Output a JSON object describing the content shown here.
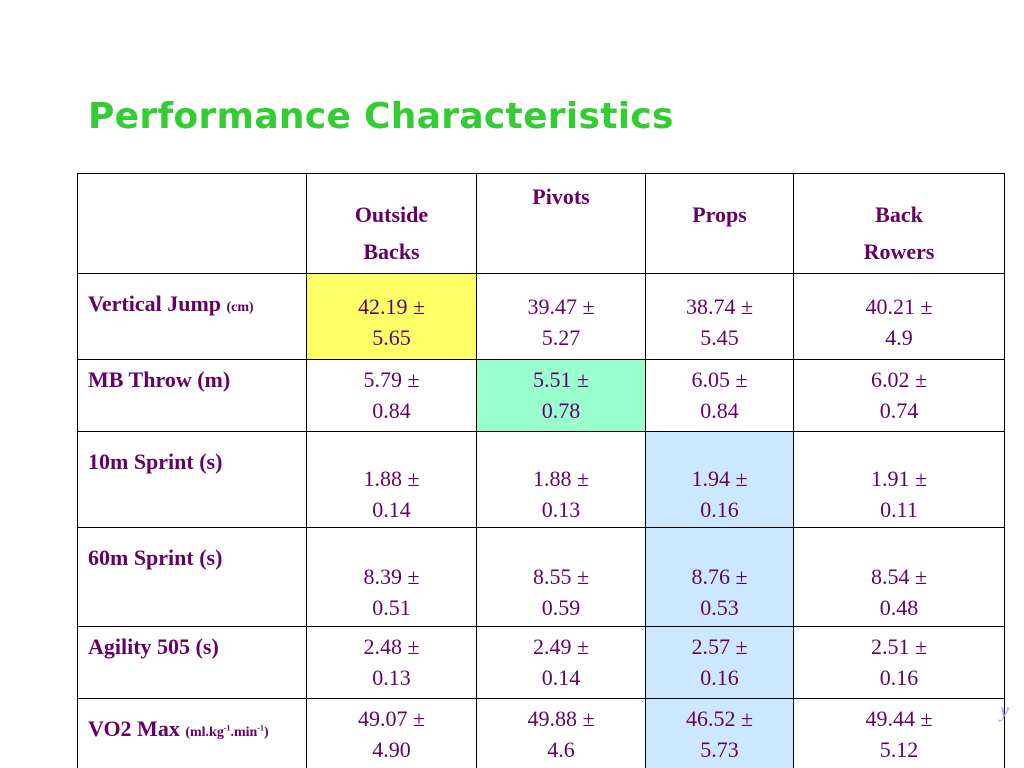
{
  "slide": {
    "title": "Performance Characteristics",
    "logo_fragment": "y"
  },
  "table": {
    "columns": [
      {
        "line1": "Outside",
        "line2": "Backs"
      },
      {
        "line1": "Pivots",
        "line2": ""
      },
      {
        "line1": "Props",
        "line2": ""
      },
      {
        "line1": "Back",
        "line2": "Rowers"
      }
    ],
    "rows": [
      {
        "label": "Vertical Jump",
        "unit": "(cm)",
        "cells": [
          {
            "mean": "42.19",
            "sd": "5.65",
            "highlight": "#ffff66"
          },
          {
            "mean": "39.47",
            "sd": "5.27"
          },
          {
            "mean": "38.74",
            "sd": "5.45"
          },
          {
            "mean": "40.21",
            "sd": "4.9"
          }
        ]
      },
      {
        "label": "MB Throw (m)",
        "cells": [
          {
            "mean": "5.79",
            "sd": "0.84"
          },
          {
            "mean": "5.51",
            "sd": "0.78",
            "highlight": "#99ffcc"
          },
          {
            "mean": "6.05",
            "sd": "0.84"
          },
          {
            "mean": "6.02",
            "sd": "0.74"
          }
        ]
      },
      {
        "label": "10m Sprint (s)",
        "cells": [
          {
            "mean": "1.88",
            "sd": "0.14"
          },
          {
            "mean": "1.88",
            "sd": "0.13"
          },
          {
            "mean": "1.94",
            "sd": "0.16",
            "highlight": "#cce8ff"
          },
          {
            "mean": "1.91",
            "sd": "0.11"
          }
        ]
      },
      {
        "label": "60m Sprint (s)",
        "cells": [
          {
            "mean": "8.39",
            "sd": "0.51"
          },
          {
            "mean": "8.55",
            "sd": "0.59"
          },
          {
            "mean": "8.76",
            "sd": "0.53",
            "highlight": "#cce8ff"
          },
          {
            "mean": "8.54",
            "sd": "0.48"
          }
        ]
      },
      {
        "label": "Agility 505 (s)",
        "cells": [
          {
            "mean": "2.48",
            "sd": "0.13"
          },
          {
            "mean": "2.49",
            "sd": "0.14"
          },
          {
            "mean": "2.57",
            "sd": "0.16",
            "highlight": "#cce8ff"
          },
          {
            "mean": "2.51",
            "sd": "0.16"
          }
        ]
      },
      {
        "label": "VO2 Max",
        "unit_parts": {
          "a": "(ml.kg",
          "b": "-1",
          "c": ".min",
          "d": "-1",
          "e": ")"
        },
        "cells": [
          {
            "mean": "49.07",
            "sd": "4.90"
          },
          {
            "mean": "49.88",
            "sd": "4.6"
          },
          {
            "mean": "46.52",
            "sd": "5.73",
            "highlight": "#cce8ff"
          },
          {
            "mean": "49.44",
            "sd": "5.12"
          }
        ]
      }
    ]
  },
  "symbols": {
    "plus_minus": "±"
  }
}
